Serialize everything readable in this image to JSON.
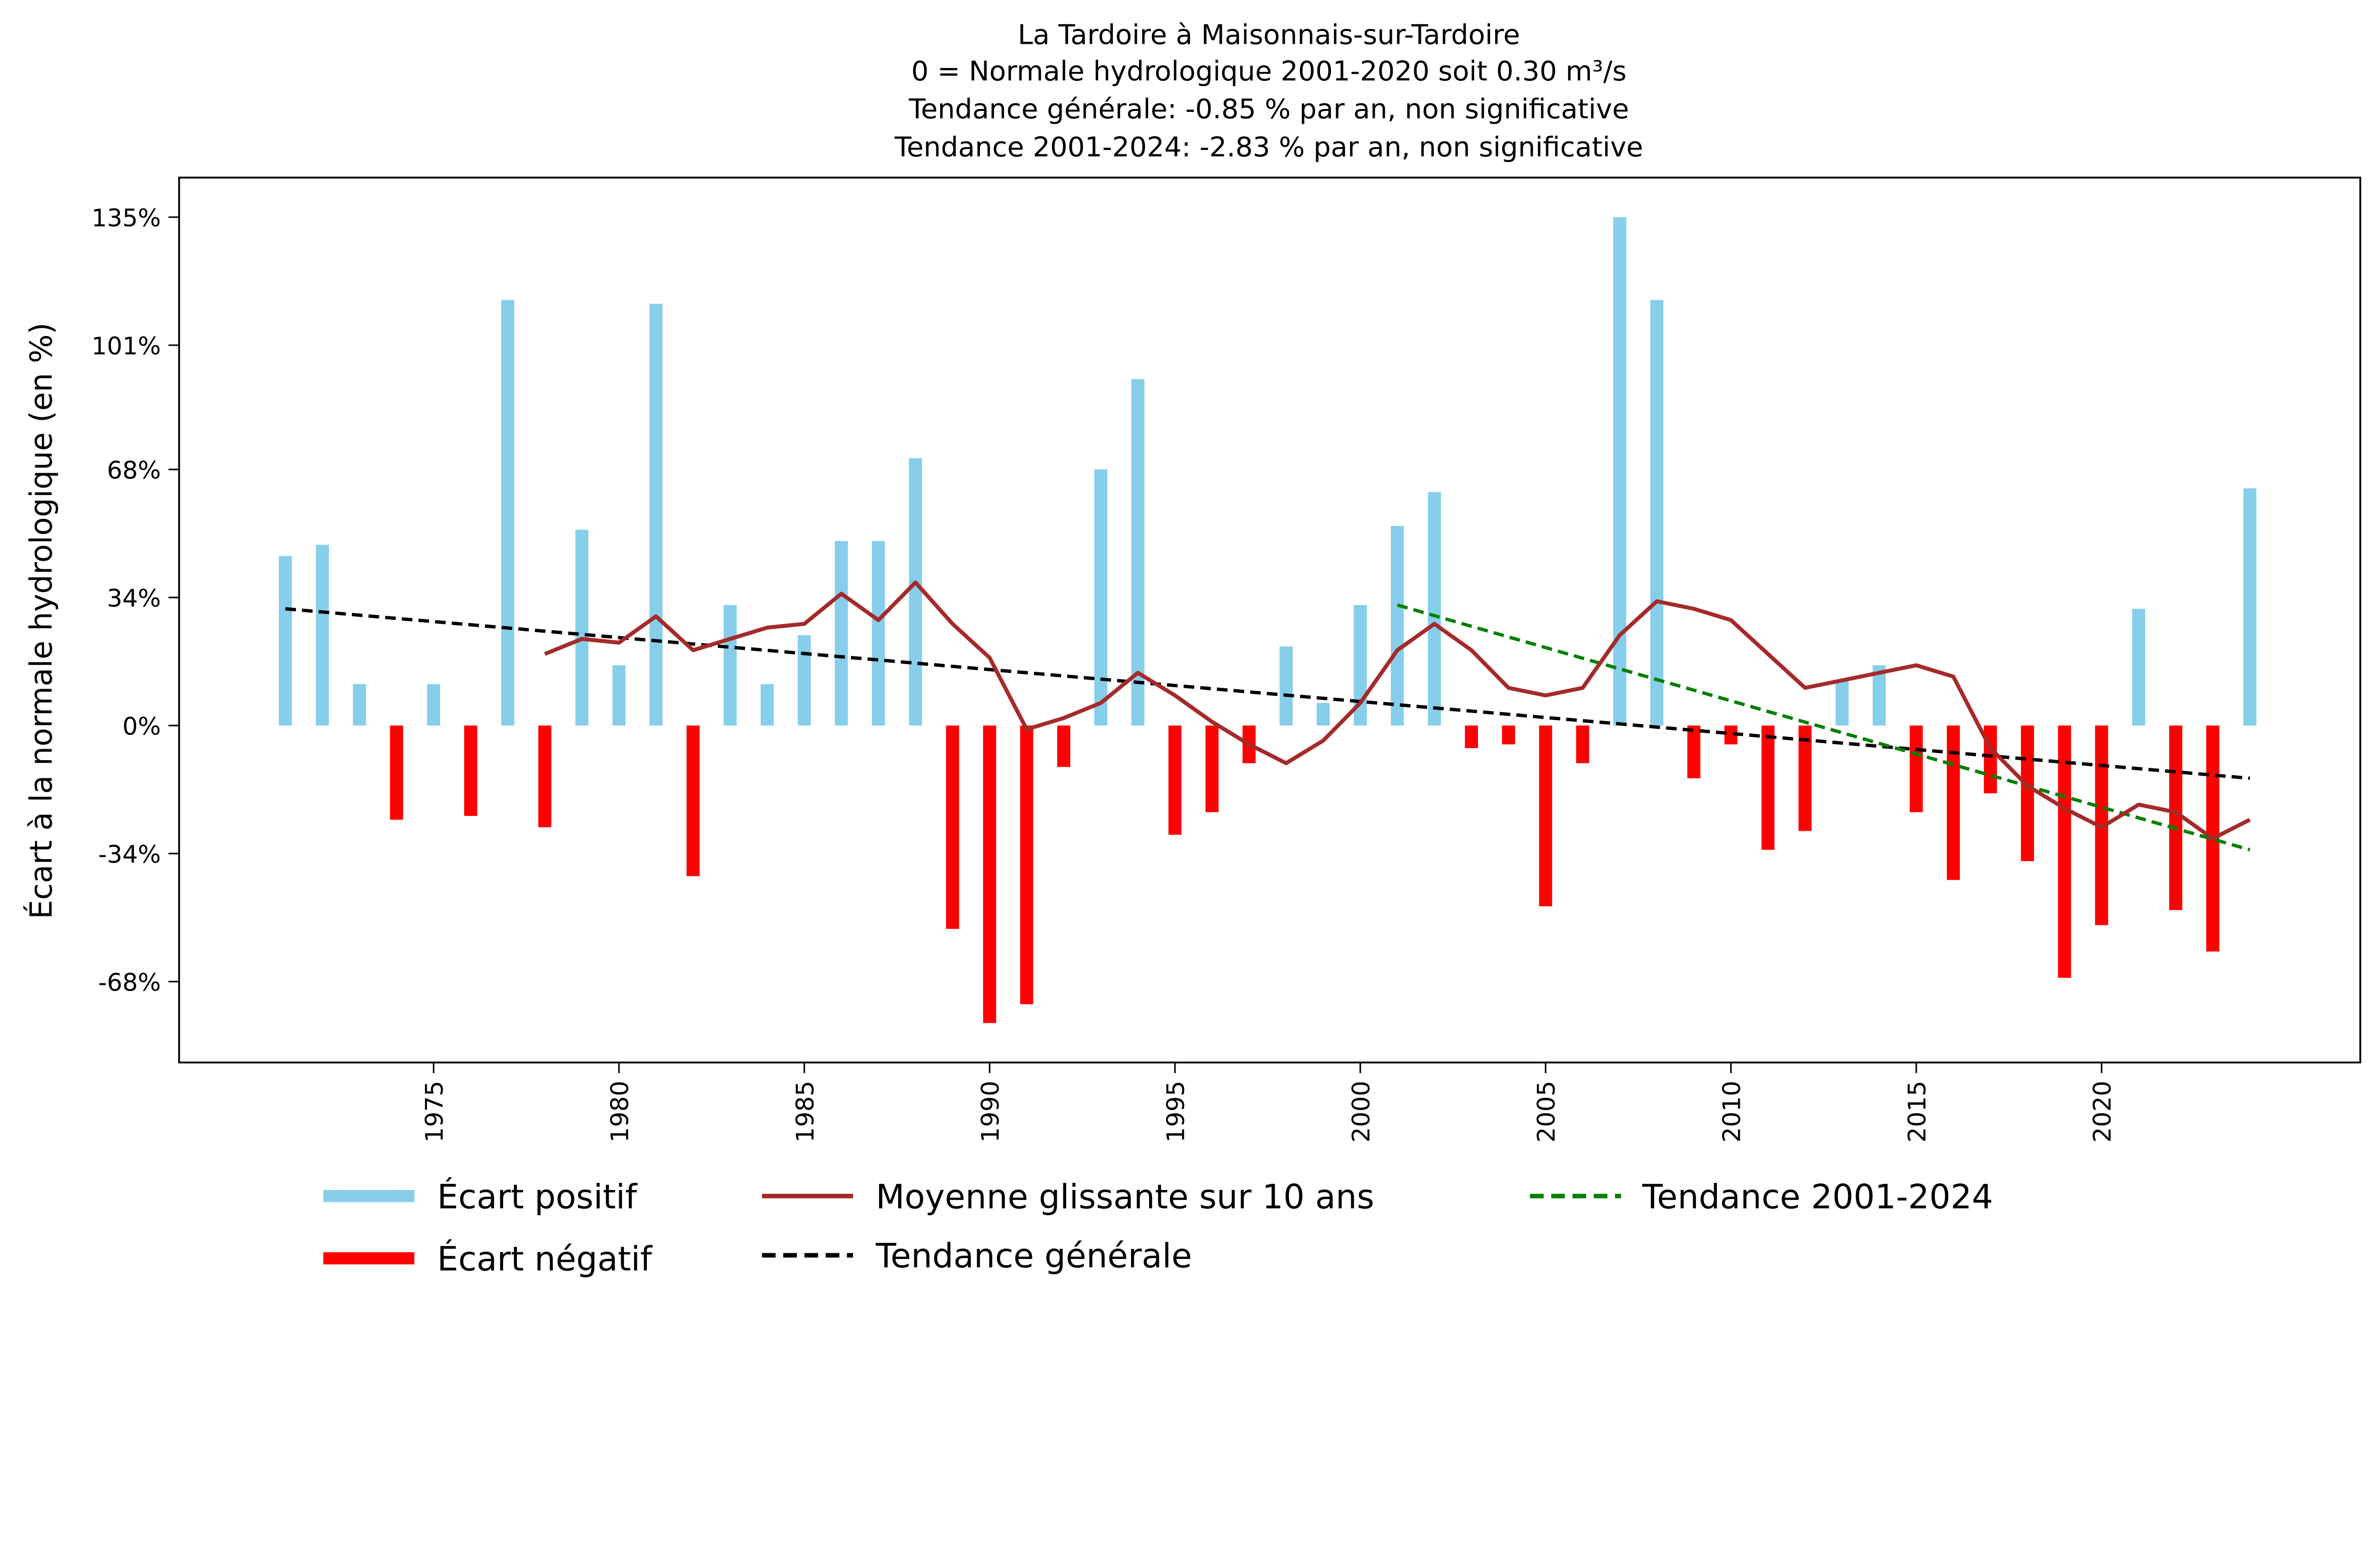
{
  "chart_data": {
    "type": "bar",
    "title": [
      "La Tardoire à Maisonnais-sur-Tardoire",
      "0 = Normale hydrologique 2001-2020 soit 0.30 m³/s",
      "Tendance générale: -0.85 % par an, non significative",
      "Tendance 2001-2024: -2.83 % par an, non significative"
    ],
    "xlabel": "",
    "ylabel": "Écart à la normale hydrologique (en %)",
    "ylim": [
      -90,
      145
    ],
    "xlim": [
      1966.3,
      2027.2
    ],
    "yticks": [
      135,
      101,
      68,
      34,
      0,
      -34,
      -68
    ],
    "ytick_labels": [
      "135%",
      "101%",
      "68%",
      "34%",
      "0%",
      "-34%",
      "-68%"
    ],
    "xticks": [
      1975,
      1980,
      1985,
      1990,
      1995,
      2000,
      2005,
      2010,
      2015,
      2020
    ],
    "xtick_labels": [
      "1975",
      "1980",
      "1985",
      "1990",
      "1995",
      "2000",
      "2005",
      "2010",
      "2015",
      "2020"
    ],
    "grid": false,
    "years": [
      1971,
      1972,
      1973,
      1974,
      1975,
      1976,
      1977,
      1978,
      1979,
      1980,
      1981,
      1982,
      1983,
      1984,
      1985,
      1986,
      1987,
      1988,
      1989,
      1990,
      1991,
      1992,
      1993,
      1994,
      1995,
      1996,
      1997,
      1998,
      1999,
      2000,
      2001,
      2002,
      2003,
      2004,
      2005,
      2006,
      2007,
      2008,
      2009,
      2010,
      2011,
      2012,
      2013,
      2014,
      2015,
      2016,
      2017,
      2018,
      2019,
      2020,
      2021,
      2022,
      2023,
      2024
    ],
    "values": [
      45,
      48,
      11,
      -25,
      11,
      -24,
      113,
      -27,
      52,
      16,
      112,
      -40,
      32,
      11,
      24,
      49,
      49,
      71,
      -54,
      -79,
      -74,
      -11,
      68,
      92,
      -29,
      -23,
      -10,
      21,
      6,
      32,
      53,
      62,
      -6,
      -5,
      -48,
      -10,
      135,
      113,
      -14,
      -5,
      -33,
      -28,
      12,
      16,
      -23,
      -41,
      -18,
      -36,
      -67,
      -53,
      31,
      -49,
      -60,
      63
    ],
    "moving_average": {
      "years": [
        1978,
        1979,
        1980,
        1981,
        1982,
        1983,
        1984,
        1985,
        1986,
        1987,
        1988,
        1989,
        1990,
        1991,
        1992,
        1993,
        1994,
        1995,
        1996,
        1997,
        1998,
        1999,
        2000,
        2001,
        2002,
        2003,
        2004,
        2005,
        2006,
        2007,
        2008,
        2009,
        2010,
        2011,
        2012,
        2013,
        2014,
        2015,
        2016,
        2017,
        2018,
        2019,
        2020,
        2021,
        2022,
        2023,
        2024
      ],
      "values": [
        19,
        23,
        22,
        29,
        20,
        23,
        26,
        27,
        35,
        28,
        38,
        27,
        18,
        -1,
        2,
        6,
        14,
        8,
        1,
        -5,
        -10,
        -4,
        6,
        20,
        27,
        20,
        10,
        8,
        10,
        24,
        33,
        31,
        28,
        19,
        10,
        12,
        14,
        16,
        13,
        -6,
        -16,
        -22,
        -27,
        -21,
        -23,
        -30,
        -25
      ]
    },
    "trend_general": {
      "years": [
        1971,
        2024
      ],
      "values": [
        31,
        -14
      ]
    },
    "trend_recent": {
      "years": [
        2001,
        2024
      ],
      "values": [
        32,
        -33
      ]
    },
    "legend": {
      "placement": "bottom",
      "entries": [
        "Écart positif",
        "Écart négatif",
        "Moyenne glissante sur 10 ans",
        "Tendance générale",
        "Tendance 2001-2024"
      ]
    },
    "colors": {
      "positive": "#87ceeb",
      "negative": "#ff0000",
      "moving_average": "#a52a2a",
      "trend_general": "#000000",
      "trend_recent": "#008000"
    }
  }
}
